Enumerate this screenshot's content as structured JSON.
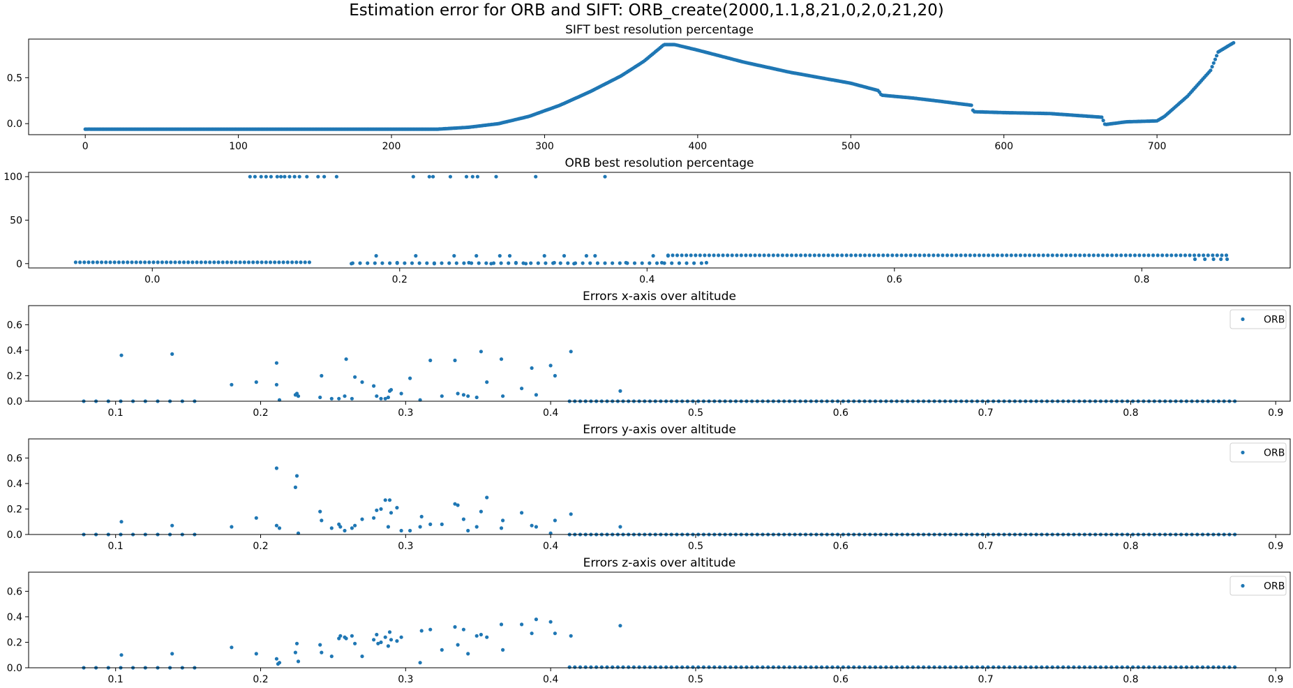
{
  "figure": {
    "title": "Estimation error for ORB and SIFT: ORB_create(2000,1.1,8,21,0,2,0,21,20)",
    "marker_color": "#1f77b4"
  },
  "chart_data": [
    {
      "type": "scatter",
      "title": "SIFT best resolution percentage",
      "xlabel": "",
      "ylabel": "",
      "xlim": [
        -37,
        787
      ],
      "ylim": [
        -0.12,
        0.92
      ],
      "xticks": [
        0,
        100,
        200,
        300,
        400,
        500,
        600,
        700
      ],
      "yticks": [
        0.0,
        0.5
      ],
      "grid": false,
      "legend": null,
      "series": [
        {
          "curve": [
            [
              0,
              -0.06
            ],
            [
              100,
              -0.06
            ],
            [
              200,
              -0.06
            ],
            [
              230,
              -0.06
            ],
            [
              250,
              -0.04
            ],
            [
              270,
              0.0
            ],
            [
              290,
              0.08
            ],
            [
              310,
              0.2
            ],
            [
              330,
              0.35
            ],
            [
              350,
              0.52
            ],
            [
              365,
              0.68
            ],
            [
              378,
              0.86
            ],
            [
              385,
              0.86
            ],
            [
              400,
              0.8
            ],
            [
              430,
              0.67
            ],
            [
              460,
              0.56
            ],
            [
              500,
              0.44
            ],
            [
              518,
              0.36
            ],
            [
              520,
              0.31
            ],
            [
              540,
              0.28
            ],
            [
              560,
              0.24
            ],
            [
              579,
              0.2
            ],
            [
              580,
              0.13
            ],
            [
              600,
              0.12
            ],
            [
              630,
              0.11
            ],
            [
              664,
              0.07
            ],
            [
              666,
              -0.01
            ],
            [
              680,
              0.02
            ],
            [
              700,
              0.03
            ],
            [
              705,
              0.08
            ],
            [
              720,
              0.3
            ],
            [
              735,
              0.58
            ],
            [
              740,
              0.78
            ],
            [
              750,
              0.88
            ]
          ],
          "count": 750
        }
      ]
    },
    {
      "type": "scatter",
      "title": "ORB best resolution percentage",
      "xlabel": "",
      "ylabel": "",
      "xlim": [
        -0.1,
        0.92
      ],
      "ylim": [
        -5,
        105
      ],
      "xticks": [
        0.0,
        0.2,
        0.4,
        0.6,
        0.8
      ],
      "yticks": [
        0,
        50,
        100
      ],
      "grid": false,
      "legend": null,
      "series": [
        {
          "x": [
            0.079,
            0.083,
            0.088,
            0.092,
            0.096,
            0.101,
            0.104,
            0.107,
            0.111,
            0.115,
            0.119,
            0.125,
            0.134,
            0.139,
            0.149,
            0.211,
            0.224,
            0.227,
            0.241,
            0.254,
            0.259,
            0.263,
            0.278,
            0.31,
            0.366
          ],
          "y": [
            100,
            100,
            100,
            100,
            100,
            100,
            100,
            100,
            100,
            100,
            100,
            100,
            100,
            100,
            100,
            100,
            100,
            100,
            100,
            100,
            100,
            100,
            100,
            100,
            100
          ]
        },
        {
          "x": [
            0.161,
            0.181,
            0.198,
            0.213,
            0.228,
            0.244,
            0.256,
            0.262,
            0.274,
            0.281,
            0.289,
            0.294,
            0.302,
            0.317,
            0.325,
            0.333,
            0.341,
            0.351,
            0.358,
            0.383,
            0.405,
            0.412,
            0.417,
            0.448,
            0.843,
            0.851,
            0.858,
            0.864,
            0.869
          ],
          "y": [
            0,
            9,
            1,
            9,
            0,
            9,
            1,
            9,
            0,
            9,
            9,
            1,
            0,
            9,
            1,
            9,
            0,
            9,
            9,
            1,
            9,
            1,
            9,
            1,
            5,
            5,
            5,
            5,
            5
          ]
        }
      ],
      "bands": [
        {
          "x_range": [
            -0.062,
            0.129
          ],
          "y": 1.5,
          "step": 0.0035
        },
        {
          "x_range": [
            0.162,
            0.448
          ],
          "y": 0.5,
          "step": 0.006
        },
        {
          "x_range": [
            0.417,
            0.872
          ],
          "y": 9.5,
          "step": 0.0037
        }
      ]
    },
    {
      "type": "scatter",
      "title": "Errors x-axis over altitude",
      "xlabel": "",
      "ylabel": "",
      "xlim": [
        0.04,
        0.91
      ],
      "ylim": [
        0,
        0.75
      ],
      "xticks": [
        0.1,
        0.2,
        0.3,
        0.4,
        0.5,
        0.6,
        0.7,
        0.8,
        0.9
      ],
      "yticks": [
        0.0,
        0.2,
        0.4,
        0.6
      ],
      "grid": false,
      "legend": "top-right",
      "series": [
        {
          "name": "ORB",
          "x": [
            0.104,
            0.139,
            0.18,
            0.197,
            0.211,
            0.211,
            0.213,
            0.224,
            0.225,
            0.226,
            0.241,
            0.242,
            0.249,
            0.254,
            0.258,
            0.259,
            0.263,
            0.265,
            0.27,
            0.278,
            0.28,
            0.283,
            0.286,
            0.288,
            0.289,
            0.29,
            0.297,
            0.303,
            0.31,
            0.317,
            0.325,
            0.334,
            0.336,
            0.34,
            0.343,
            0.349,
            0.352,
            0.356,
            0.366,
            0.367,
            0.38,
            0.387,
            0.39,
            0.4,
            0.403,
            0.414,
            0.448
          ],
          "y": [
            0.36,
            0.37,
            0.13,
            0.15,
            0.3,
            0.13,
            0.01,
            0.05,
            0.06,
            0.04,
            0.03,
            0.2,
            0.02,
            0.02,
            0.04,
            0.33,
            0.02,
            0.19,
            0.15,
            0.12,
            0.04,
            0.02,
            0.02,
            0.03,
            0.08,
            0.09,
            0.06,
            0.18,
            0.01,
            0.32,
            0.04,
            0.32,
            0.06,
            0.05,
            0.04,
            0.03,
            0.39,
            0.15,
            0.33,
            0.04,
            0.1,
            0.26,
            0.05,
            0.28,
            0.2,
            0.39,
            0.08
          ]
        }
      ],
      "bands": [
        {
          "x_range": [
            0.078,
            0.155
          ],
          "y": 0.0,
          "step": 0.0085
        },
        {
          "x_range": [
            0.413,
            0.872
          ],
          "y": 0.0,
          "step": 0.0037
        }
      ]
    },
    {
      "type": "scatter",
      "title": "Errors y-axis over altitude",
      "xlabel": "",
      "ylabel": "",
      "xlim": [
        0.04,
        0.91
      ],
      "ylim": [
        0,
        0.75
      ],
      "xticks": [
        0.1,
        0.2,
        0.3,
        0.4,
        0.5,
        0.6,
        0.7,
        0.8,
        0.9
      ],
      "yticks": [
        0.0,
        0.2,
        0.4,
        0.6
      ],
      "grid": false,
      "legend": "top-right",
      "series": [
        {
          "name": "ORB",
          "x": [
            0.104,
            0.139,
            0.18,
            0.197,
            0.211,
            0.211,
            0.213,
            0.224,
            0.225,
            0.226,
            0.241,
            0.242,
            0.249,
            0.254,
            0.255,
            0.258,
            0.263,
            0.265,
            0.27,
            0.278,
            0.28,
            0.283,
            0.286,
            0.288,
            0.289,
            0.29,
            0.294,
            0.297,
            0.303,
            0.31,
            0.311,
            0.317,
            0.325,
            0.334,
            0.336,
            0.34,
            0.343,
            0.349,
            0.352,
            0.356,
            0.366,
            0.367,
            0.38,
            0.387,
            0.39,
            0.4,
            0.403,
            0.414,
            0.448
          ],
          "y": [
            0.1,
            0.07,
            0.06,
            0.13,
            0.52,
            0.07,
            0.05,
            0.37,
            0.46,
            0.01,
            0.18,
            0.11,
            0.05,
            0.08,
            0.06,
            0.03,
            0.05,
            0.07,
            0.12,
            0.13,
            0.19,
            0.2,
            0.27,
            0.06,
            0.27,
            0.17,
            0.21,
            0.03,
            0.03,
            0.06,
            0.14,
            0.08,
            0.08,
            0.24,
            0.23,
            0.12,
            0.03,
            0.06,
            0.18,
            0.29,
            0.05,
            0.11,
            0.17,
            0.07,
            0.06,
            0.01,
            0.11,
            0.16,
            0.06
          ]
        }
      ],
      "bands": [
        {
          "x_range": [
            0.078,
            0.155
          ],
          "y": 0.0,
          "step": 0.0085
        },
        {
          "x_range": [
            0.413,
            0.872
          ],
          "y": 0.0,
          "step": 0.0037
        }
      ]
    },
    {
      "type": "scatter",
      "title": "Errors z-axis over altitude",
      "xlabel": "",
      "ylabel": "",
      "xlim": [
        0.04,
        0.91
      ],
      "ylim": [
        0,
        0.75
      ],
      "xticks": [
        0.1,
        0.2,
        0.3,
        0.4,
        0.5,
        0.6,
        0.7,
        0.8,
        0.9
      ],
      "yticks": [
        0.0,
        0.2,
        0.4,
        0.6
      ],
      "grid": false,
      "legend": "top-right",
      "series": [
        {
          "name": "ORB",
          "x": [
            0.104,
            0.139,
            0.18,
            0.197,
            0.211,
            0.212,
            0.213,
            0.224,
            0.225,
            0.226,
            0.241,
            0.242,
            0.249,
            0.254,
            0.255,
            0.258,
            0.259,
            0.263,
            0.265,
            0.27,
            0.278,
            0.28,
            0.281,
            0.283,
            0.286,
            0.288,
            0.289,
            0.29,
            0.294,
            0.297,
            0.31,
            0.311,
            0.317,
            0.325,
            0.334,
            0.336,
            0.34,
            0.343,
            0.349,
            0.352,
            0.356,
            0.366,
            0.367,
            0.38,
            0.387,
            0.39,
            0.4,
            0.403,
            0.414,
            0.448
          ],
          "y": [
            0.1,
            0.11,
            0.16,
            0.11,
            0.07,
            0.03,
            0.04,
            0.12,
            0.19,
            0.05,
            0.18,
            0.12,
            0.09,
            0.23,
            0.25,
            0.24,
            0.23,
            0.25,
            0.19,
            0.09,
            0.22,
            0.26,
            0.19,
            0.2,
            0.24,
            0.17,
            0.28,
            0.22,
            0.21,
            0.24,
            0.04,
            0.29,
            0.3,
            0.14,
            0.32,
            0.18,
            0.3,
            0.11,
            0.25,
            0.26,
            0.24,
            0.34,
            0.14,
            0.34,
            0.27,
            0.38,
            0.36,
            0.27,
            0.25,
            0.33
          ]
        }
      ],
      "bands": [
        {
          "x_range": [
            0.078,
            0.155
          ],
          "y": 0.0,
          "step": 0.0085
        },
        {
          "x_range": [
            0.413,
            0.872
          ],
          "y": 0.005,
          "step": 0.0037
        }
      ]
    }
  ]
}
